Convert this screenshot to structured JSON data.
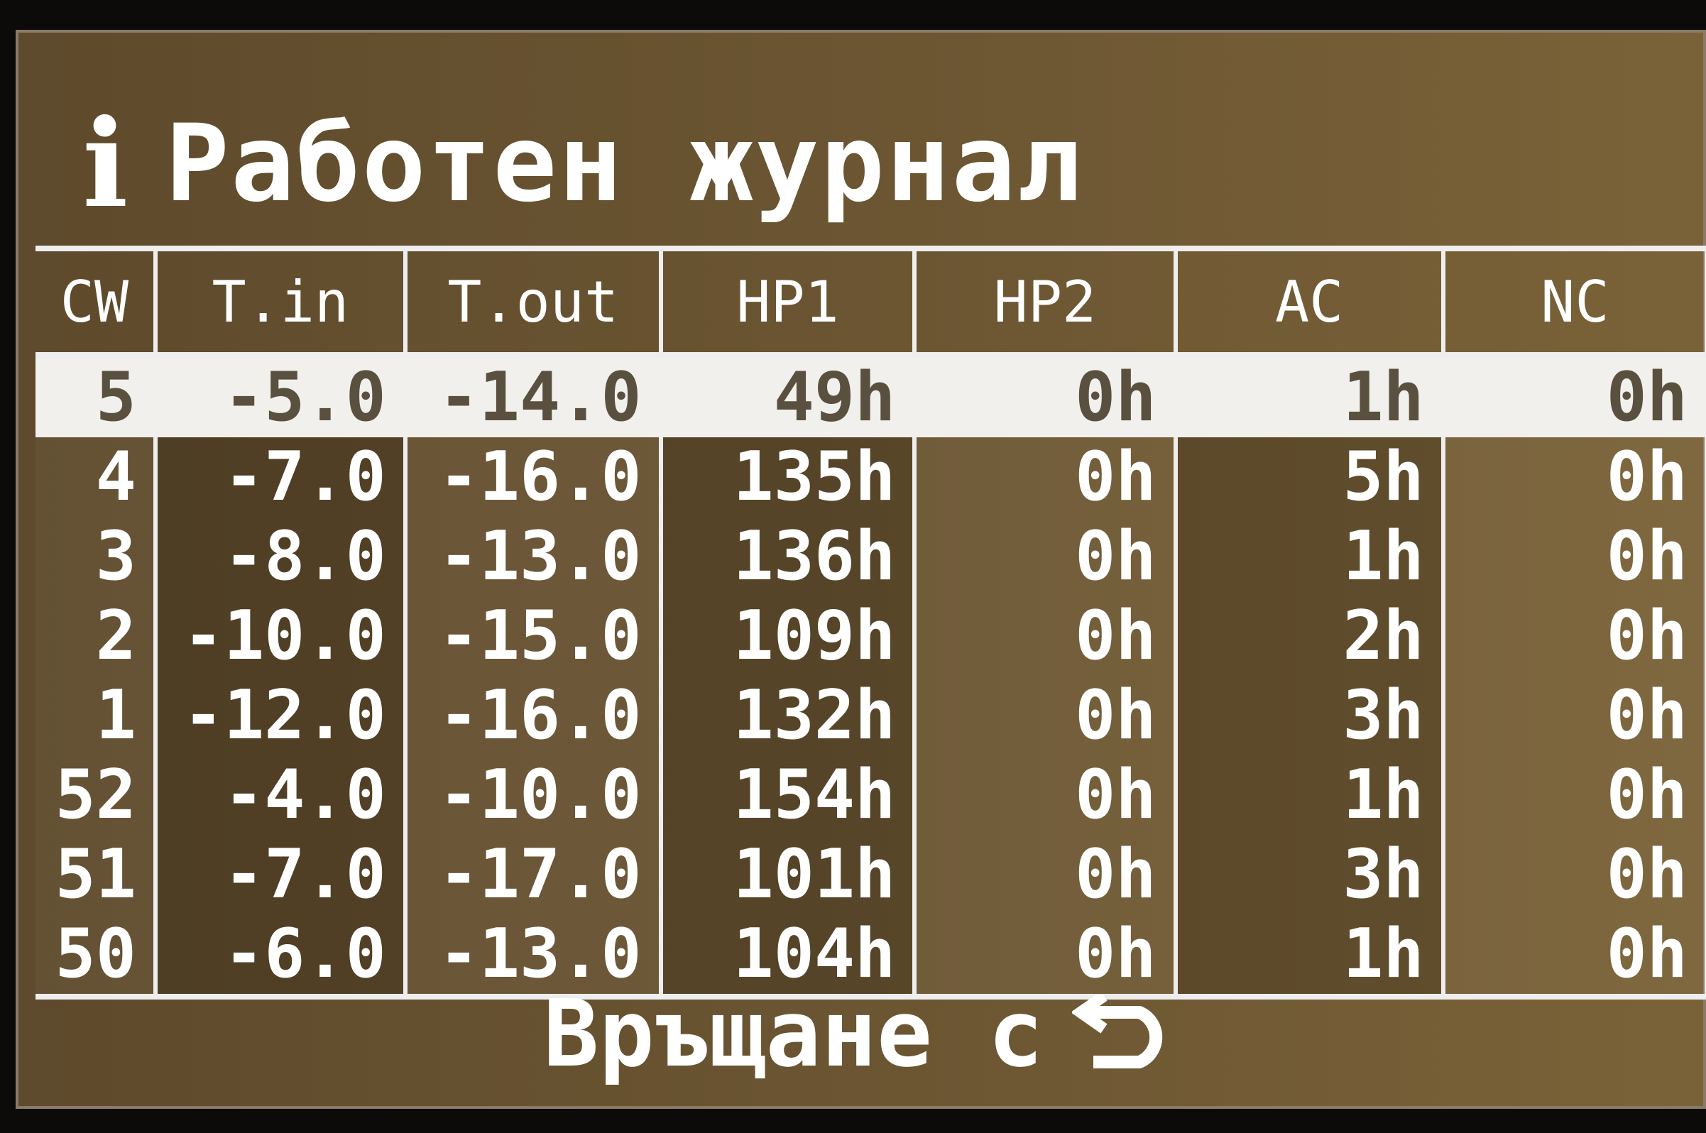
{
  "header": {
    "icon": "info-icon",
    "icon_glyph": "i",
    "title": "Работен журнал"
  },
  "table": {
    "columns": [
      "CW",
      "T.in",
      "T.out",
      "HP1",
      "HP2",
      "AC",
      "NC"
    ],
    "rows": [
      [
        "5",
        "-5.0",
        "-14.0",
        "49h",
        "0h",
        "1h",
        "0h"
      ],
      [
        "4",
        "-7.0",
        "-16.0",
        "135h",
        "0h",
        "5h",
        "0h"
      ],
      [
        "3",
        "-8.0",
        "-13.0",
        "136h",
        "0h",
        "1h",
        "0h"
      ],
      [
        "2",
        "-10.0",
        "-15.0",
        "109h",
        "0h",
        "2h",
        "0h"
      ],
      [
        "1",
        "-12.0",
        "-16.0",
        "132h",
        "0h",
        "3h",
        "0h"
      ],
      [
        "52",
        "-4.0",
        "-10.0",
        "154h",
        "0h",
        "1h",
        "0h"
      ],
      [
        "51",
        "-7.0",
        "-17.0",
        "101h",
        "0h",
        "3h",
        "0h"
      ],
      [
        "50",
        "-6.0",
        "-13.0",
        "104h",
        "0h",
        "1h",
        "0h"
      ]
    ],
    "selected_row": 0
  },
  "footer": {
    "label": "Връщане с",
    "icon": "return-arrow-icon"
  },
  "colors": {
    "background": "#6b5532",
    "text": "#ffffff",
    "highlight": "#f2f0ec"
  }
}
